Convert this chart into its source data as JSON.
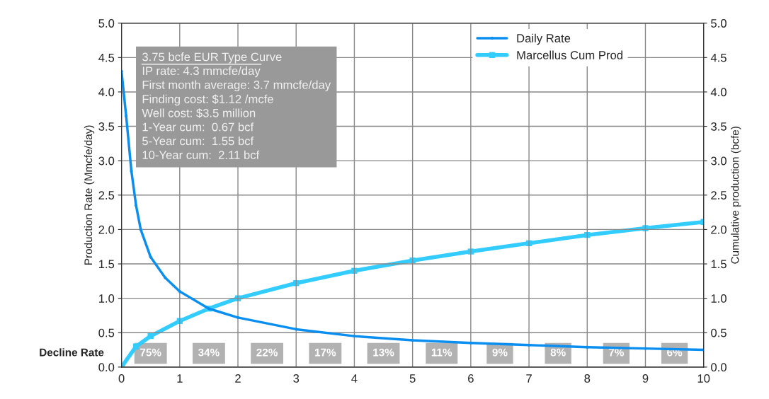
{
  "chart_data": {
    "type": "line",
    "xlim": [
      0,
      10
    ],
    "xticks": [
      0,
      1,
      2,
      3,
      4,
      5,
      6,
      7,
      8,
      9,
      10
    ],
    "ylim": [
      0,
      5
    ],
    "yticks": [
      {
        "value": 0,
        "label": "0.0"
      },
      {
        "value": 0.5,
        "label": "0.5"
      },
      {
        "value": 1,
        "label": "1.0"
      },
      {
        "value": 1.5,
        "label": "1.5"
      },
      {
        "value": 2,
        "label": "2.0"
      },
      {
        "value": 2.5,
        "label": "2.5"
      },
      {
        "value": 3,
        "label": "3.0"
      },
      {
        "value": 3.5,
        "label": "3.5"
      },
      {
        "value": 4,
        "label": "4.0"
      },
      {
        "value": 4.5,
        "label": "4.5"
      },
      {
        "value": 5,
        "label": "5.0"
      }
    ],
    "y2lim": [
      0,
      5
    ],
    "y2ticks": [
      {
        "value": 0,
        "label": "0.0"
      },
      {
        "value": 0.5,
        "label": "0.5"
      },
      {
        "value": 1,
        "label": "1.0"
      },
      {
        "value": 1.5,
        "label": "1.5"
      },
      {
        "value": 2,
        "label": "2.0"
      },
      {
        "value": 2.5,
        "label": "2.5"
      },
      {
        "value": 3,
        "label": "3.0"
      },
      {
        "value": 3.5,
        "label": "3.5"
      },
      {
        "value": 4,
        "label": "4.0"
      },
      {
        "value": 4.5,
        "label": "4.5"
      },
      {
        "value": 5,
        "label": "5.0"
      }
    ],
    "ylabel": "Production Rate (Mmcfe/day)",
    "y2label": "Cumulative production (bcfe)",
    "grid": true,
    "legend": "top right",
    "line_style": "solid",
    "series": [
      {
        "name": "Daily Rate",
        "color": "#0a8ff0",
        "marker": "circle",
        "x": [
          0,
          0.08,
          0.17,
          0.25,
          0.33,
          0.5,
          0.75,
          1,
          1.5,
          2,
          3,
          4,
          5,
          6,
          7,
          8,
          9,
          10
        ],
        "values": [
          4.3,
          3.65,
          2.85,
          2.35,
          2.0,
          1.6,
          1.3,
          1.1,
          0.85,
          0.72,
          0.55,
          0.45,
          0.39,
          0.35,
          0.32,
          0.29,
          0.27,
          0.25
        ]
      },
      {
        "name": "Marcellus Cum Prod",
        "color": "#33ccff",
        "marker": "square",
        "axis": "y2",
        "x": [
          0,
          0.25,
          0.5,
          1,
          1.5,
          2,
          3,
          4,
          5,
          6,
          7,
          8,
          9,
          10
        ],
        "values": [
          0,
          0.3,
          0.45,
          0.67,
          0.85,
          1.0,
          1.22,
          1.4,
          1.55,
          1.68,
          1.8,
          1.92,
          2.02,
          2.11
        ]
      }
    ],
    "annotations": [
      "3.75 bcfe EUR Type Curve",
      "IP rate: 4.3 mmcfe/day",
      "First month average: 3.7 mmcfe/day",
      "Finding cost: $1.12 /mcfe",
      "Well cost: $3.5 million",
      "1-Year cum:  0.67 bcf",
      "5-Year cum:  1.55 bcf",
      "10-Year cum:  2.11 bcf",
      "Decline Rate",
      "75%",
      "34%",
      "22%",
      "17%",
      "13%",
      "11%",
      "9%",
      "8%",
      "7%",
      "6%"
    ]
  }
}
